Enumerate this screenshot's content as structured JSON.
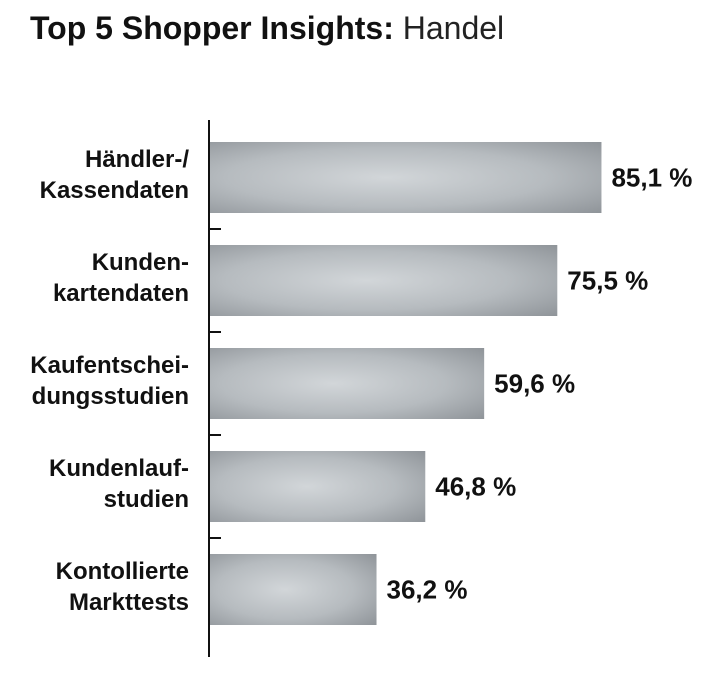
{
  "title": {
    "bold": "Top 5 Shopper Insights:",
    "light": "Handel"
  },
  "chart_data": {
    "type": "bar",
    "orientation": "horizontal",
    "categories": [
      [
        "Händler-/",
        "Kassendaten"
      ],
      [
        "Kunden-",
        "kartendaten"
      ],
      [
        "Kaufentschei-",
        "dungsstudien"
      ],
      [
        "Kundenlauf-",
        "studien"
      ],
      [
        "Kontollierte",
        "Markttests"
      ]
    ],
    "values": [
      85.1,
      75.5,
      59.6,
      46.8,
      36.2
    ],
    "value_labels": [
      "85,1 %",
      "75,5 %",
      "59,6 %",
      "46,8 %",
      "36,2 %"
    ],
    "xlim": [
      0,
      100
    ],
    "grid": false,
    "bar_color": "#b9bec2"
  }
}
